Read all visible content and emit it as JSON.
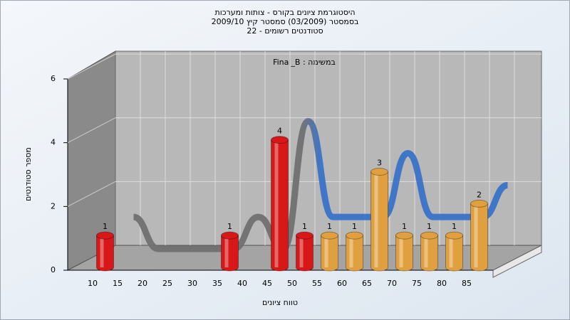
{
  "chart_data": {
    "type": "bar",
    "title": [
      "היסטוגרמת ציונים בקורס - צותות ומערכות",
      "בסמסטר (03/2009) סמסטר קיץ 2009/10",
      "סטודנטים רשומים - 22"
    ],
    "subtitle": "במשימה : Final_B",
    "x_label": "טווח ציונים",
    "y_label": "מספר סטודנטים",
    "categories": [
      "10",
      "15",
      "20",
      "25",
      "30",
      "35",
      "40",
      "45",
      "50",
      "55",
      "60",
      "65",
      "70",
      "75",
      "80",
      "85"
    ],
    "values": [
      1,
      0,
      0,
      0,
      0,
      1,
      0,
      4,
      1,
      1,
      1,
      3,
      1,
      1,
      1,
      2
    ],
    "colors": [
      "#d81818",
      "#d81818",
      "#d81818",
      "#d81818",
      "#d81818",
      "#d81818",
      "#d81818",
      "#d81818",
      "#d81818",
      "#e0a040",
      "#e0a040",
      "#e0a040",
      "#e0a040",
      "#e0a040",
      "#e0a040",
      "#e0a040"
    ],
    "line_color": "#3a72c8",
    "ylim": [
      0,
      6
    ],
    "yticks": [
      0,
      2,
      4,
      6
    ],
    "grid": true
  }
}
